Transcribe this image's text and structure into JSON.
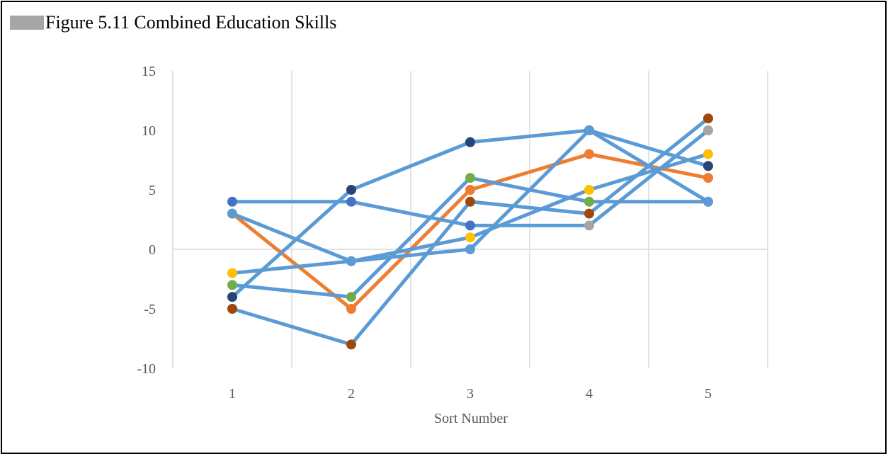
{
  "caption": {
    "text": "Figure 5.11 Combined Education Skills",
    "swatch_color": "#a6a6a6"
  },
  "chart_data": {
    "type": "line",
    "title": "Figure 5.11 Combined Education Skills",
    "xlabel": "Sort Number",
    "ylabel": "",
    "categories": [
      "1",
      "2",
      "3",
      "4",
      "5"
    ],
    "ylim": [
      -10,
      15
    ],
    "yticks": [
      "-10",
      "-5",
      "0",
      "5",
      "10",
      "15"
    ],
    "grid": "vertical category separators plus zero line",
    "legend": "none",
    "series": [
      {
        "values": [
          3,
          -5,
          5,
          8,
          6
        ],
        "line_color": "#ed7d31",
        "marker_color": "#ed7d31"
      },
      {
        "values": [
          -2,
          -1,
          1,
          5,
          8
        ],
        "line_color": "#5b9bd5",
        "marker_color": "#ffc000"
      },
      {
        "values": [
          -3,
          -4,
          6,
          4,
          4
        ],
        "line_color": "#5b9bd5",
        "marker_color": "#70ad47"
      },
      {
        "values": [
          -5,
          -8,
          4,
          3,
          11
        ],
        "line_color": "#5b9bd5",
        "marker_color": "#9e480e"
      },
      {
        "values": [
          -4,
          5,
          9,
          10,
          7
        ],
        "line_color": "#5b9bd5",
        "marker_color": "#264478"
      },
      {
        "values": [
          4,
          4,
          2,
          2,
          10
        ],
        "line_color": "#5b9bd5",
        "marker_color": "#4472c4"
      },
      {
        "values": [
          3,
          -1,
          0,
          10,
          4
        ],
        "line_color": "#5b9bd5",
        "marker_color": "#5b9bd5"
      }
    ],
    "point_overrides": [
      {
        "series": 5,
        "index": 3,
        "marker_color": "#a5a5a5"
      },
      {
        "series": 5,
        "index": 4,
        "marker_color": "#a5a5a5"
      }
    ]
  }
}
